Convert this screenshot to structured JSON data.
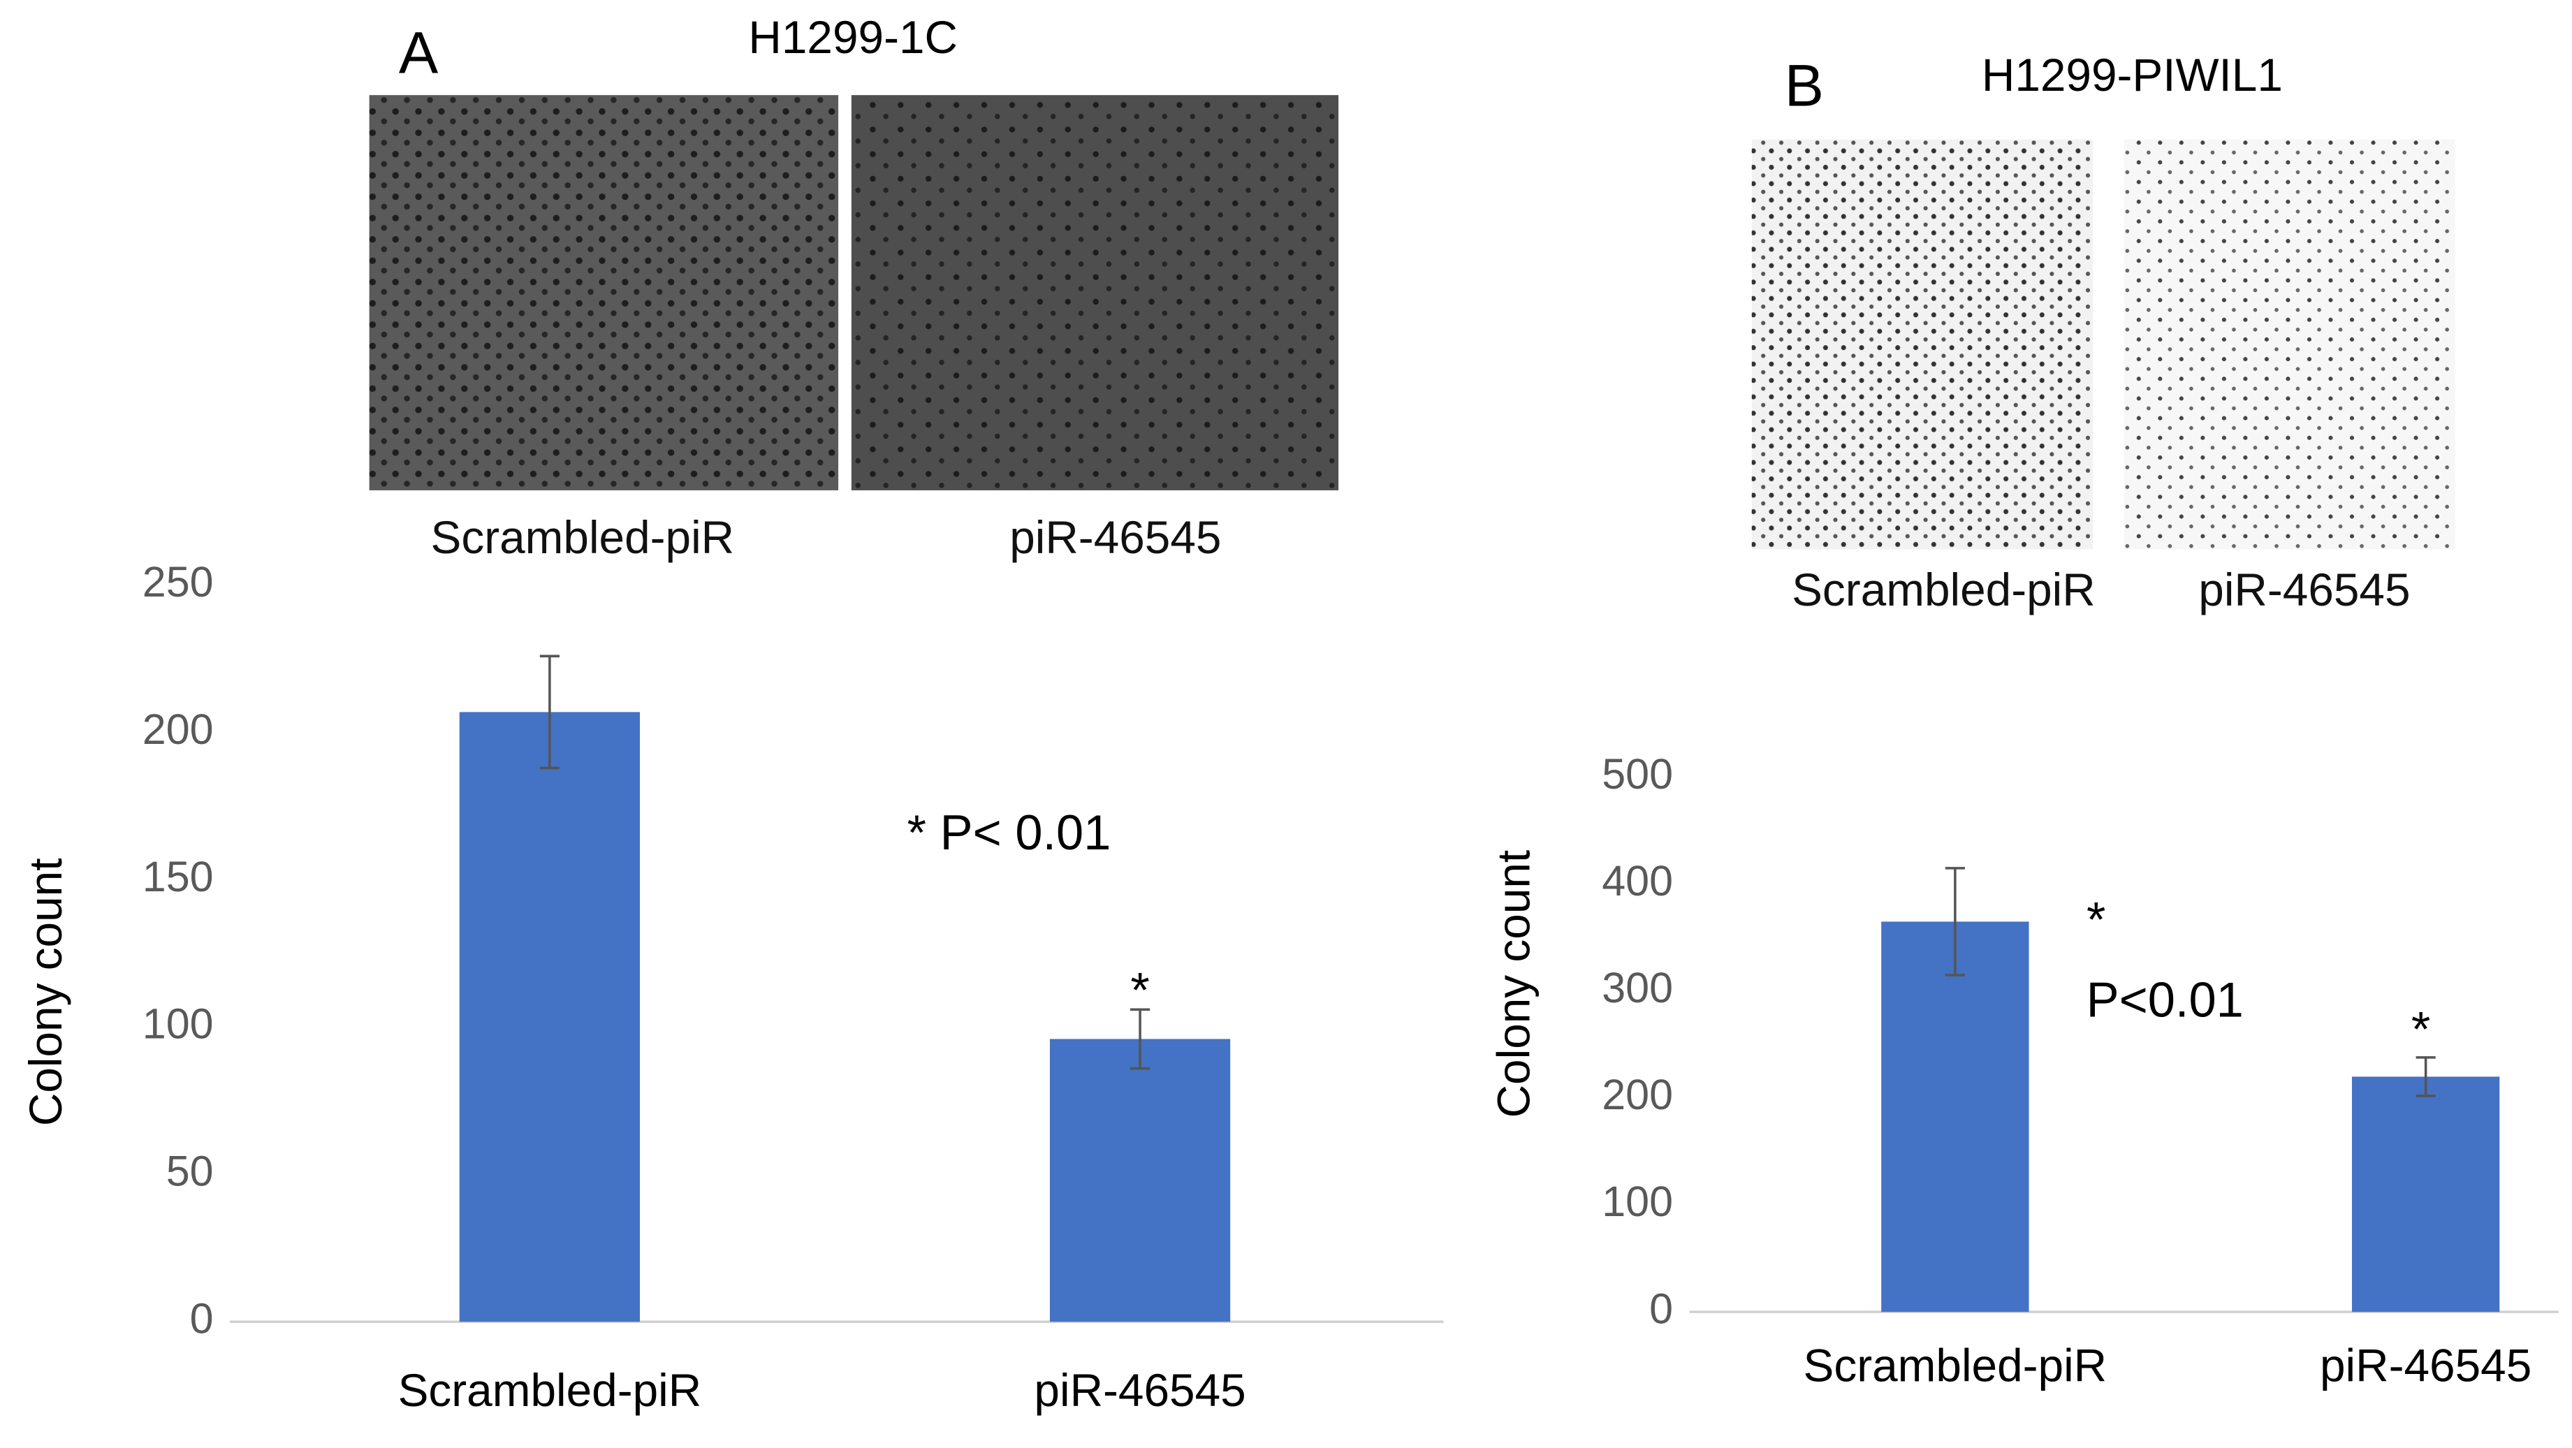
{
  "chart_data": [
    {
      "type": "bar",
      "panel_label": "A",
      "title": "H1299-1C",
      "image_labels": [
        "Scrambled-piR",
        "piR-46545"
      ],
      "y_label": "Colony count",
      "categories": [
        "Scrambled-piR",
        "piR-46545"
      ],
      "values": [
        207,
        96
      ],
      "errors": [
        19,
        10
      ],
      "color": "#4472c4",
      "ylim": [
        0,
        250
      ],
      "yticks": [
        0,
        50,
        100,
        150,
        200,
        250
      ],
      "annotations": [
        "* P< 0.01",
        "*"
      ]
    },
    {
      "type": "bar",
      "panel_label": "B",
      "title": "H1299-PIWIL1",
      "image_labels": [
        "Scrambled-piR",
        "piR-46545"
      ],
      "y_label": "Colony count",
      "categories": [
        "Scrambled-piR",
        "piR-46545"
      ],
      "values": [
        365,
        220
      ],
      "errors": [
        50,
        18
      ],
      "color": "#4472c4",
      "ylim": [
        0,
        500
      ],
      "yticks": [
        0,
        100,
        200,
        300,
        400,
        500
      ],
      "annotations": [
        "*",
        "P<0.01",
        "*"
      ]
    }
  ]
}
